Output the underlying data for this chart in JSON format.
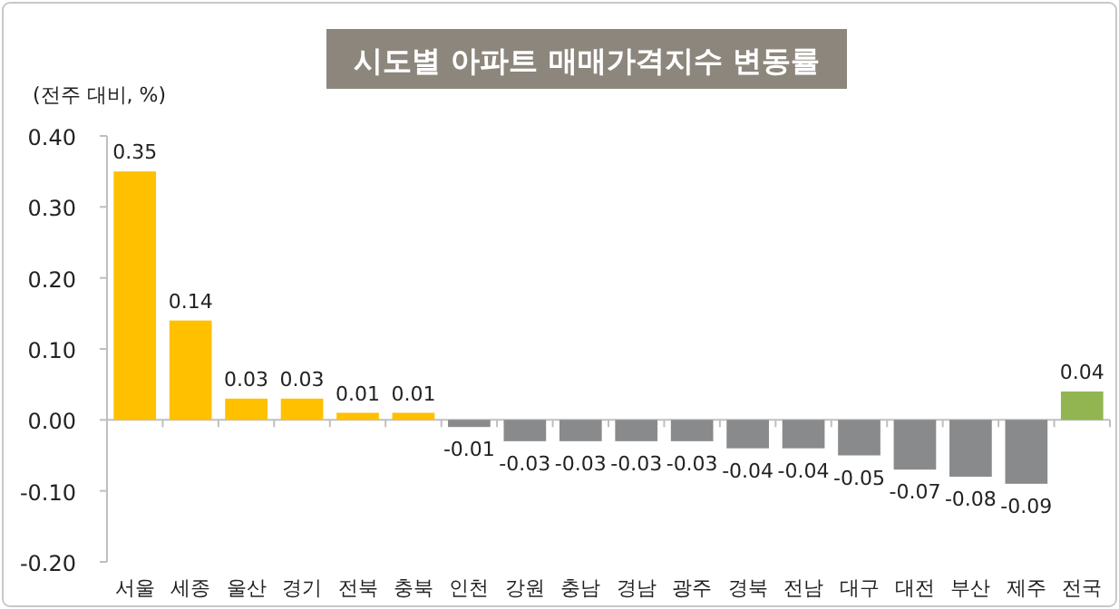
{
  "chart_data": {
    "type": "bar",
    "title": "시도별 아파트 매매가격지수 변동률",
    "ylabel": "(전주 대비, %)",
    "categories": [
      "서울",
      "세종",
      "울산",
      "경기",
      "전북",
      "충북",
      "인천",
      "강원",
      "충남",
      "경남",
      "광주",
      "경북",
      "전남",
      "대구",
      "대전",
      "부산",
      "제주",
      "전국"
    ],
    "values": [
      0.35,
      0.14,
      0.03,
      0.03,
      0.01,
      0.01,
      -0.01,
      -0.03,
      -0.03,
      -0.03,
      -0.03,
      -0.04,
      -0.04,
      -0.05,
      -0.07,
      -0.08,
      -0.09,
      0.04
    ],
    "colors": [
      "#ffc000",
      "#ffc000",
      "#ffc000",
      "#ffc000",
      "#ffc000",
      "#ffc000",
      "#898a8c",
      "#898a8c",
      "#898a8c",
      "#898a8c",
      "#898a8c",
      "#898a8c",
      "#898a8c",
      "#898a8c",
      "#898a8c",
      "#898a8c",
      "#898a8c",
      "#92b552"
    ],
    "ylim": [
      -0.2,
      0.4
    ],
    "yticks": [
      {
        "value": 0.4,
        "label": "0.40"
      },
      {
        "value": 0.3,
        "label": "0.30"
      },
      {
        "value": 0.2,
        "label": "0.20"
      },
      {
        "value": 0.1,
        "label": "0.10"
      },
      {
        "value": 0,
        "label": "0.00"
      },
      {
        "value": -0.1,
        "label": "-0.10"
      },
      {
        "value": -0.2,
        "label": "-0.20"
      }
    ],
    "data_labels": true
  }
}
